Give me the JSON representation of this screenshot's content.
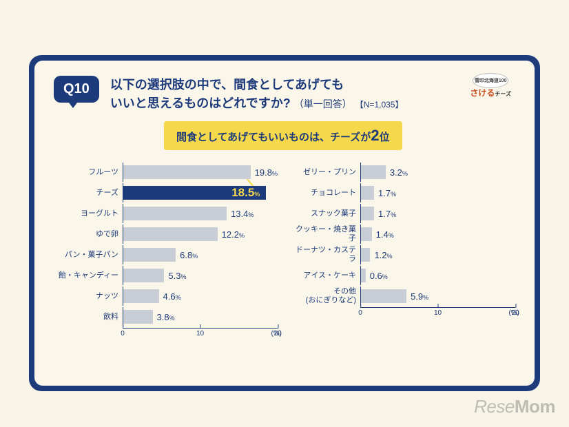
{
  "question": {
    "number": "Q10",
    "line1": "以下の選択肢の中で、間食としてあげても",
    "line2": "いいと思えるものはどれですか?",
    "subnote": "（単一回答）",
    "n_note": "【N=1,035】"
  },
  "brand": {
    "top": "雪印北海道100",
    "main": "さける",
    "suffix": "チーズ"
  },
  "callout": {
    "prefix": "間食としてあげてもいいものは、チーズが",
    "rank": "2",
    "suffix": "位"
  },
  "chart": {
    "type": "bar",
    "x_max": 20,
    "bar_color_default": "#c9cdd6",
    "bar_color_highlight": "#1d3b7a",
    "value_color": "#1d3b7a",
    "value_color_highlight": "#f5d84b",
    "background_color": "#faf6ea",
    "frame_color": "#1d3b7a",
    "callout_bg": "#f5d84b",
    "label_fontsize": 11,
    "value_fontsize_num": 13,
    "highlight_value_fontsize": 17,
    "columns": [
      [
        {
          "label": "フルーツ",
          "value": 19.8,
          "highlight": false
        },
        {
          "label": "チーズ",
          "value": 18.5,
          "highlight": true
        },
        {
          "label": "ヨーグルト",
          "value": 13.4,
          "highlight": false
        },
        {
          "label": "ゆで卵",
          "value": 12.2,
          "highlight": false
        },
        {
          "label": "パン・菓子パン",
          "value": 6.8,
          "highlight": false
        },
        {
          "label": "飴・キャンディー",
          "value": 5.3,
          "highlight": false
        },
        {
          "label": "ナッツ",
          "value": 4.6,
          "highlight": false
        },
        {
          "label": "飲料",
          "value": 3.8,
          "highlight": false
        }
      ],
      [
        {
          "label": "ゼリー・プリン",
          "value": 3.2,
          "highlight": false
        },
        {
          "label": "チョコレート",
          "value": 1.7,
          "highlight": false
        },
        {
          "label": "スナック菓子",
          "value": 1.7,
          "highlight": false
        },
        {
          "label": "クッキー・焼き菓子",
          "value": 1.4,
          "highlight": false
        },
        {
          "label": "ドーナツ・カステラ",
          "value": 1.2,
          "highlight": false
        },
        {
          "label": "アイス・ケーキ",
          "value": 0.6,
          "highlight": false
        },
        {
          "label": "その他\n(おにぎりなど)",
          "value": 5.9,
          "highlight": false
        }
      ]
    ],
    "xticks": [
      0,
      10,
      20
    ],
    "xunit": "(%)"
  },
  "watermark": {
    "part1": "Rese",
    "part2": "Mom"
  }
}
